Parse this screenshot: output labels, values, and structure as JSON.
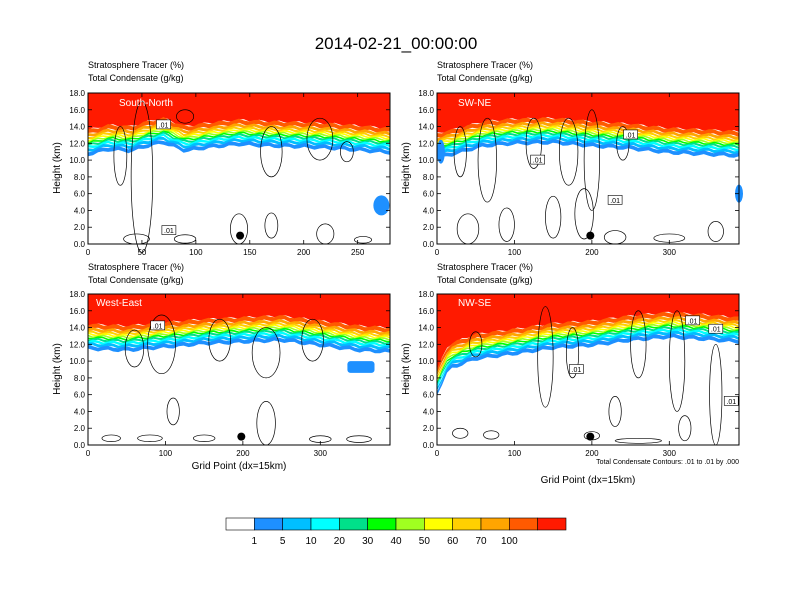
{
  "title": "2014-02-21_00:00:00",
  "colors": {
    "levels": [
      "#ffffff",
      "#1e90ff",
      "#00bfff",
      "#00ffff",
      "#00e08a",
      "#00ff00",
      "#a0ff20",
      "#ffff00",
      "#ffd000",
      "#ffa500",
      "#ff5a00",
      "#ff1a00"
    ],
    "contour": "#000000"
  },
  "colorbar": {
    "labels": [
      "1",
      "5",
      "10",
      "20",
      "30",
      "40",
      "50",
      "60",
      "70",
      "100"
    ]
  },
  "footnote": "Total Condensate Contours: .01 to .01 by .000",
  "chart_data": [
    {
      "type": "heatmap",
      "id": "south-north",
      "panel_label": "South-North",
      "subtitle1": "Stratosphere Tracer   (%)",
      "subtitle2": "Total Condensate   (g/kg)",
      "ylabel": "Height (km)",
      "xlabel": "",
      "xlim": [
        0,
        280
      ],
      "ylim": [
        0,
        18
      ],
      "xticks": [
        0,
        50,
        100,
        150,
        200,
        250
      ],
      "yticks": [
        "0.0",
        "2.0",
        "4.0",
        "6.0",
        "8.0",
        "10.0",
        "12.0",
        "14.0",
        "16.0",
        "18.0"
      ],
      "tracer_front_km": [
        [
          0,
          13.6
        ],
        [
          20,
          14.2
        ],
        [
          40,
          14.0
        ],
        [
          55,
          14.6
        ],
        [
          70,
          15.0
        ],
        [
          90,
          14.0
        ],
        [
          110,
          14.4
        ],
        [
          140,
          14.8
        ],
        [
          170,
          14.6
        ],
        [
          200,
          14.5
        ],
        [
          230,
          14.3
        ],
        [
          260,
          14.0
        ],
        [
          280,
          13.8
        ]
      ],
      "contour_label": ".01",
      "dot": [
        141,
        1.0
      ]
    },
    {
      "type": "heatmap",
      "id": "sw-ne",
      "panel_label": "SW-NE",
      "subtitle1": "Stratosphere Tracer   (%)",
      "subtitle2": "Total Condensate   (g/kg)",
      "ylabel": "Height (km)",
      "xlabel": "",
      "xlim": [
        0,
        390
      ],
      "ylim": [
        0,
        18
      ],
      "xticks": [
        0,
        100,
        200,
        300
      ],
      "yticks": [
        "0.0",
        "2.0",
        "4.0",
        "6.0",
        "8.0",
        "10.0",
        "12.0",
        "14.0",
        "16.0",
        "18.0"
      ],
      "tracer_front_km": [
        [
          0,
          13.2
        ],
        [
          20,
          13.6
        ],
        [
          60,
          14.6
        ],
        [
          100,
          14.9
        ],
        [
          150,
          15.0
        ],
        [
          200,
          14.6
        ],
        [
          250,
          14.3
        ],
        [
          300,
          13.8
        ],
        [
          350,
          13.6
        ],
        [
          390,
          13.4
        ]
      ],
      "contour_label": ".01",
      "dot": [
        198,
        1.0
      ]
    },
    {
      "type": "heatmap",
      "id": "west-east",
      "panel_label": "West-East",
      "subtitle1": "Stratosphere Tracer   (%)",
      "subtitle2": "Total Condensate   (g/kg)",
      "ylabel": "Height (km)",
      "xlabel": "Grid Point (dx=15km)",
      "xlim": [
        0,
        390
      ],
      "ylim": [
        0,
        18
      ],
      "xticks": [
        0,
        100,
        200,
        300
      ],
      "yticks": [
        "0.0",
        "2.0",
        "4.0",
        "6.0",
        "8.0",
        "10.0",
        "12.0",
        "14.0",
        "16.0",
        "18.0"
      ],
      "tracer_front_km": [
        [
          0,
          14.4
        ],
        [
          50,
          14.2
        ],
        [
          100,
          14.6
        ],
        [
          150,
          15.0
        ],
        [
          200,
          15.2
        ],
        [
          250,
          15.4
        ],
        [
          300,
          14.8
        ],
        [
          350,
          14.2
        ],
        [
          390,
          14.0
        ]
      ],
      "contour_label": ".01",
      "dot": [
        198,
        1.0
      ]
    },
    {
      "type": "heatmap",
      "id": "nw-se",
      "panel_label": "NW-SE",
      "subtitle1": "Stratosphere Tracer   (%)",
      "subtitle2": "Total Condensate   (g/kg)",
      "ylabel": "Height (km)",
      "xlabel": "Grid Point (dx=15km)",
      "xlim": [
        0,
        390
      ],
      "ylim": [
        0,
        18
      ],
      "xticks": [
        0,
        100,
        200,
        300
      ],
      "yticks": [
        "0.0",
        "2.0",
        "4.0",
        "6.0",
        "8.0",
        "10.0",
        "12.0",
        "14.0",
        "16.0",
        "18.0"
      ],
      "tracer_front_km": [
        [
          0,
          9.0
        ],
        [
          15,
          12.0
        ],
        [
          50,
          13.2
        ],
        [
          100,
          13.8
        ],
        [
          150,
          14.5
        ],
        [
          200,
          14.8
        ],
        [
          250,
          15.4
        ],
        [
          300,
          15.8
        ],
        [
          350,
          15.5
        ],
        [
          390,
          15.2
        ]
      ],
      "contour_label": ".01",
      "dot": [
        198,
        1.0
      ]
    }
  ]
}
